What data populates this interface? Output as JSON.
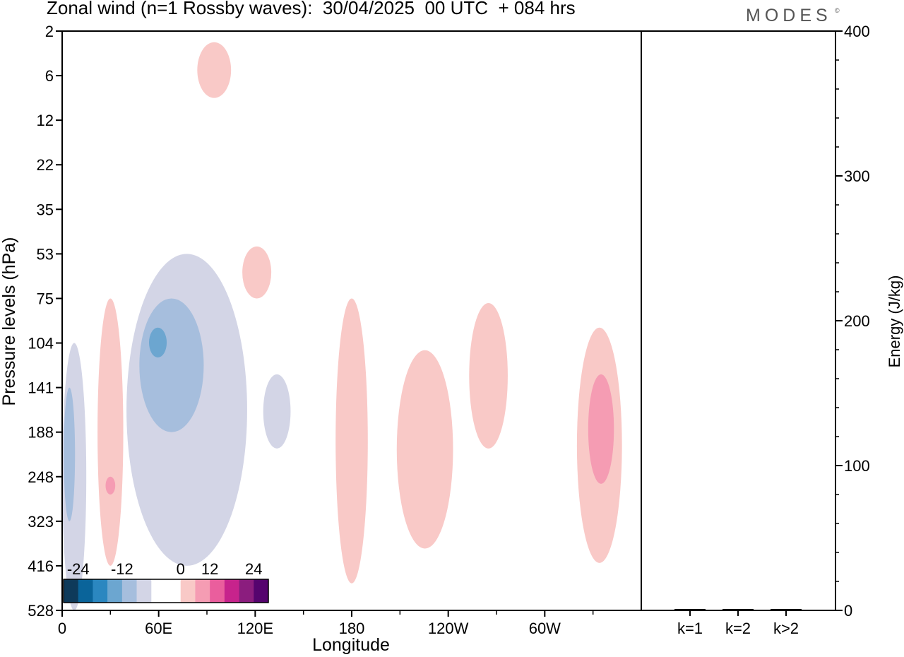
{
  "header": {
    "title": "Zonal wind (n=1 Rossby waves):  30/04/2025  00 UTC  + 084 hrs",
    "brand": "MODES",
    "brand_mark": "©"
  },
  "chart_data": [
    {
      "type": "contour",
      "title": "Zonal wind (n=1 Rossby waves):  30/04/2025  00 UTC  + 084 hrs",
      "xlabel": "Longitude",
      "ylabel": "Pressure levels (hPa)",
      "x_ticks": [
        {
          "lon": 0,
          "label": "0"
        },
        {
          "lon": 60,
          "label": "60E"
        },
        {
          "lon": 120,
          "label": "120E"
        },
        {
          "lon": 180,
          "label": "180"
        },
        {
          "lon": 240,
          "label": "120W"
        },
        {
          "lon": 300,
          "label": "60W"
        }
      ],
      "xlim": [
        0,
        360
      ],
      "y_levels": [
        "2",
        "6",
        "12",
        "22",
        "35",
        "53",
        "75",
        "104",
        "141",
        "188",
        "248",
        "323",
        "416",
        "528"
      ],
      "colorbar": {
        "labels": [
          "-24",
          "-12",
          "0",
          "12",
          "24"
        ],
        "colors": [
          "#0e3a5a",
          "#0a649a",
          "#2b87c0",
          "#6ca6d0",
          "#a6bedd",
          "#d3d5e6",
          "#ffffff",
          "#ffffff",
          "#f9c9c7",
          "#f59cb3",
          "#ea5e9d",
          "#c7238c",
          "#8b1d7e",
          "#55046e"
        ]
      },
      "regions": [
        {
          "sign": "negative",
          "level": -6,
          "lon": [
            0,
            15
          ],
          "levels": [
            "104",
            "528"
          ]
        },
        {
          "sign": "negative",
          "level": -12,
          "lon": [
            1,
            8
          ],
          "levels": [
            "141",
            "323"
          ]
        },
        {
          "sign": "positive",
          "level": 6,
          "lon": [
            22,
            38
          ],
          "levels": [
            "75",
            "416"
          ]
        },
        {
          "sign": "positive",
          "level": 12,
          "lon": [
            27,
            33
          ],
          "levels": [
            "248",
            "278"
          ]
        },
        {
          "sign": "negative",
          "level": -6,
          "lon": [
            40,
            115
          ],
          "levels": [
            "53",
            "416"
          ]
        },
        {
          "sign": "negative",
          "level": -12,
          "lon": [
            48,
            88
          ],
          "levels": [
            "75",
            "188"
          ]
        },
        {
          "sign": "negative",
          "level": -18,
          "lon": [
            54,
            65
          ],
          "levels": [
            "94",
            "116"
          ]
        },
        {
          "sign": "positive",
          "level": 6,
          "lon": [
            84,
            105
          ],
          "levels": [
            "3",
            "9"
          ]
        },
        {
          "sign": "positive",
          "level": 6,
          "lon": [
            112,
            130
          ],
          "levels": [
            "50",
            "75"
          ]
        },
        {
          "sign": "negative",
          "level": -6,
          "lon": [
            125,
            142
          ],
          "levels": [
            "130",
            "210"
          ]
        },
        {
          "sign": "positive",
          "level": 6,
          "lon": [
            170,
            190
          ],
          "levels": [
            "75",
            "460"
          ]
        },
        {
          "sign": "positive",
          "level": 6,
          "lon": [
            208,
            243
          ],
          "levels": [
            "110",
            "380"
          ]
        },
        {
          "sign": "positive",
          "level": 6,
          "lon": [
            253,
            277
          ],
          "levels": [
            "78",
            "210"
          ]
        },
        {
          "sign": "positive",
          "level": 6,
          "lon": [
            320,
            348
          ],
          "levels": [
            "94",
            "410"
          ]
        },
        {
          "sign": "positive",
          "level": 12,
          "lon": [
            327,
            343
          ],
          "levels": [
            "130",
            "260"
          ]
        }
      ]
    },
    {
      "type": "bar",
      "ylabel": "Energy (J/kg)",
      "categories": [
        "k=1",
        "k=2",
        "k>2"
      ],
      "values": [
        0.5,
        0.5,
        0.5
      ],
      "ylim": [
        0,
        400
      ],
      "y_ticks": [
        "0",
        "100",
        "200",
        "300",
        "400"
      ]
    }
  ]
}
